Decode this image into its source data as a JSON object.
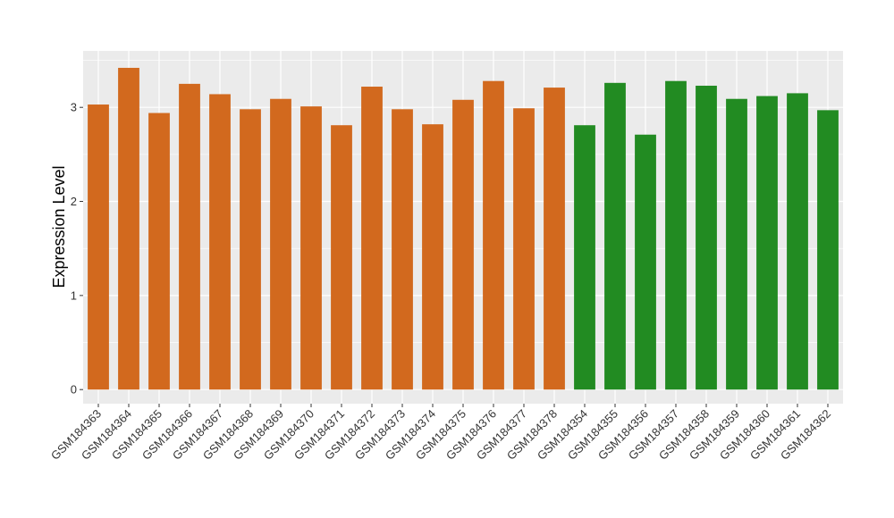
{
  "chart_data": {
    "type": "bar",
    "title": "",
    "xlabel": "",
    "ylabel": "Expression Level",
    "ylim": [
      -0.15,
      3.6
    ],
    "yticks": [
      0,
      1,
      2,
      3
    ],
    "grid": true,
    "legend": "none",
    "colors": {
      "group1": "#D2691E",
      "group2": "#228B22",
      "panel": "#EBEBEB",
      "gridline": "#FFFFFF"
    },
    "categories": [
      "GSM184363",
      "GSM184364",
      "GSM184365",
      "GSM184366",
      "GSM184367",
      "GSM184368",
      "GSM184369",
      "GSM184370",
      "GSM184371",
      "GSM184372",
      "GSM184373",
      "GSM184374",
      "GSM184375",
      "GSM184376",
      "GSM184377",
      "GSM184378",
      "GSM184354",
      "GSM184355",
      "GSM184356",
      "GSM184357",
      "GSM184358",
      "GSM184359",
      "GSM184360",
      "GSM184361",
      "GSM184362"
    ],
    "values": [
      3.03,
      3.42,
      2.94,
      3.25,
      3.14,
      2.98,
      3.09,
      3.01,
      2.81,
      3.22,
      2.98,
      2.82,
      3.08,
      3.28,
      2.99,
      3.21,
      2.81,
      3.26,
      2.71,
      3.28,
      3.23,
      3.09,
      3.12,
      3.15,
      2.97
    ],
    "groups": [
      1,
      1,
      1,
      1,
      1,
      1,
      1,
      1,
      1,
      1,
      1,
      1,
      1,
      1,
      1,
      1,
      2,
      2,
      2,
      2,
      2,
      2,
      2,
      2,
      2
    ]
  }
}
